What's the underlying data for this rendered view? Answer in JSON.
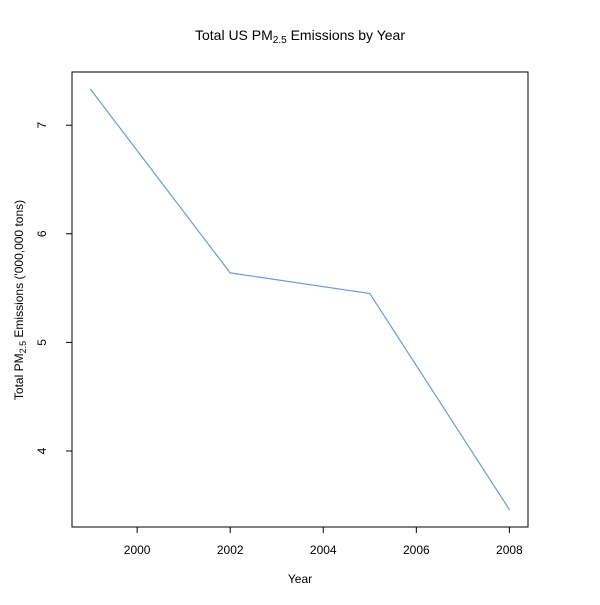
{
  "chart_data": {
    "type": "line",
    "title": {
      "prefix": "Total US PM",
      "subscript": "2.5",
      "suffix": " Emissions by Year"
    },
    "xlabel": "Year",
    "ylabel": {
      "prefix": "Total PM",
      "subscript": "2.5",
      "suffix": " Emissions ('000,000 tons)"
    },
    "x": [
      1999,
      2002,
      2005,
      2008
    ],
    "series": [
      {
        "values": [
          7.33,
          5.64,
          5.45,
          3.46
        ],
        "color": "#6f9ccb"
      }
    ],
    "xlim": [
      1998.6,
      2008.4
    ],
    "ylim": [
      3.3,
      7.49
    ],
    "xticks": [
      2000,
      2002,
      2004,
      2006,
      2008
    ],
    "yticks": [
      4,
      5,
      6,
      7
    ],
    "grid": false,
    "legend": "none"
  }
}
